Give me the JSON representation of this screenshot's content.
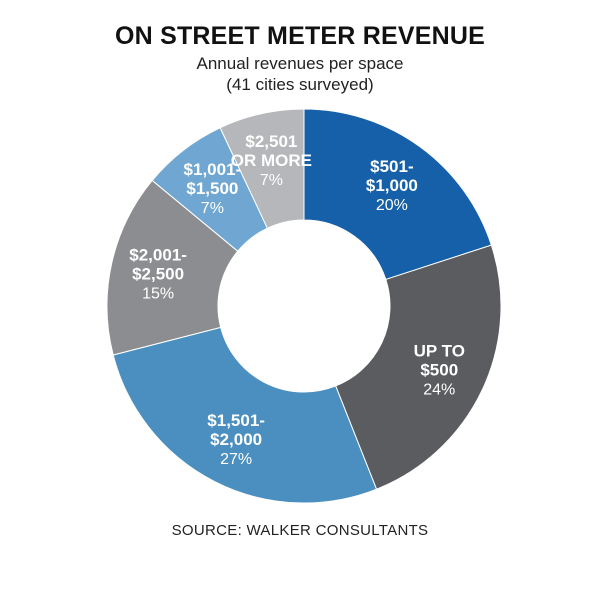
{
  "chart_data": {
    "type": "pie",
    "title": "ON STREET METER REVENUE",
    "subtitle": [
      "Annual revenues per space",
      "(41 cities surveyed)"
    ],
    "slices": [
      {
        "label": [
          "$501-",
          "$1,000"
        ],
        "value": 20,
        "pct_label": "20%",
        "color": "#1560a8"
      },
      {
        "label": [
          "UP TO",
          "$500"
        ],
        "value": 24,
        "pct_label": "24%",
        "color": "#5a5c60"
      },
      {
        "label": [
          "$1,501-",
          "$2,000"
        ],
        "value": 27,
        "pct_label": "27%",
        "color": "#4a8fc0"
      },
      {
        "label": [
          "$2,001-",
          "$2,500"
        ],
        "value": 15,
        "pct_label": "15%",
        "color": "#8c8d90"
      },
      {
        "label": [
          "$1,001-",
          "$1,500"
        ],
        "value": 7,
        "pct_label": "7%",
        "color": "#6fa7d2"
      },
      {
        "label": [
          "$2,501",
          "OR MORE"
        ],
        "value": 7,
        "pct_label": "7%",
        "color": "#b6b7ba"
      }
    ],
    "donut": true,
    "legend": "none",
    "source": "SOURCE: WALKER CONSULTANTS"
  }
}
